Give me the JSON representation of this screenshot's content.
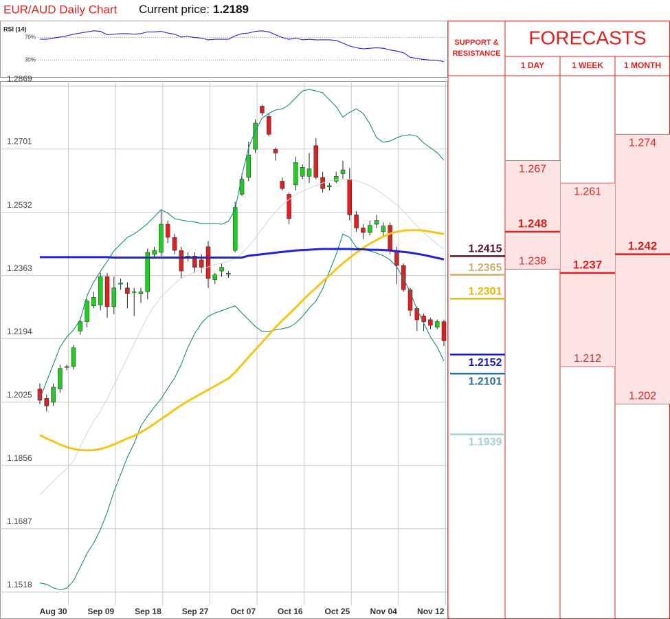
{
  "header": {
    "title": "EUR/AUD Daily Chart",
    "price_label": "Current price:",
    "price": 1.2189
  },
  "chart_data": [
    {
      "type": "candlestick",
      "categories": [
        null,
        null,
        "Aug 30",
        null,
        null,
        null,
        null,
        null,
        null,
        "Sep 09",
        null,
        null,
        null,
        null,
        null,
        null,
        "Sep 18",
        null,
        null,
        null,
        null,
        null,
        null,
        "Sep 27",
        null,
        null,
        null,
        null,
        null,
        null,
        "Oct 07",
        null,
        null,
        null,
        null,
        null,
        null,
        "Oct 16",
        null,
        null,
        null,
        null,
        null,
        null,
        "Oct 25",
        null,
        null,
        null,
        null,
        null,
        null,
        "Nov 04",
        null,
        null,
        null,
        null,
        null,
        null,
        "Nov 12",
        null,
        null
      ],
      "open": [
        1.206,
        1.2035,
        1.2025,
        1.206,
        1.2118,
        1.212,
        1.2215,
        1.224,
        1.2282,
        1.2285,
        1.236,
        1.228,
        1.234,
        1.233,
        1.2318,
        1.2315,
        1.232,
        1.242,
        1.2425,
        1.25,
        1.2465,
        1.243,
        1.241,
        1.2415,
        1.2405,
        1.244,
        1.2352,
        1.2375,
        1.2367,
        1.243,
        1.258,
        1.2625,
        1.27,
        1.2815,
        1.2788,
        1.27,
        1.2615,
        1.258,
        1.2605,
        1.2628,
        1.2628,
        1.271,
        1.2625,
        1.26,
        1.2615,
        1.2635,
        1.262,
        1.2525,
        1.249,
        1.2478,
        1.25,
        1.248,
        1.2497,
        1.2428,
        1.239,
        1.2325,
        1.2275,
        1.2255,
        1.2245,
        1.2225,
        1.224
      ],
      "high": [
        1.2075,
        1.2045,
        1.2075,
        1.2125,
        1.2125,
        1.2178,
        1.225,
        1.23,
        1.232,
        1.237,
        1.237,
        1.236,
        1.2355,
        1.2345,
        1.233,
        1.233,
        1.2435,
        1.244,
        1.254,
        1.251,
        1.2475,
        1.244,
        1.2425,
        1.2425,
        1.242,
        1.2455,
        1.237,
        1.2395,
        1.2375,
        1.256,
        1.2635,
        1.272,
        1.278,
        1.282,
        1.2795,
        1.2705,
        1.2625,
        1.2585,
        1.268,
        1.266,
        1.269,
        1.273,
        1.264,
        1.261,
        1.264,
        1.267,
        1.265,
        1.2535,
        1.25,
        1.251,
        1.2525,
        1.2505,
        1.2505,
        1.244,
        1.2395,
        1.233,
        1.228,
        1.2262,
        1.225,
        1.2245,
        1.2245
      ],
      "low": [
        1.202,
        1.2,
        1.2015,
        1.205,
        1.211,
        1.2112,
        1.2205,
        1.2225,
        1.2275,
        1.227,
        1.225,
        1.226,
        1.2325,
        1.2275,
        1.2255,
        1.229,
        1.23,
        1.241,
        1.2415,
        1.245,
        1.242,
        1.2355,
        1.24,
        1.237,
        1.237,
        1.233,
        1.234,
        1.236,
        1.2357,
        1.2425,
        1.2575,
        1.2615,
        1.269,
        1.279,
        1.2735,
        1.267,
        1.259,
        1.25,
        1.259,
        1.262,
        1.261,
        1.262,
        1.2585,
        1.259,
        1.261,
        1.262,
        1.251,
        1.248,
        1.246,
        1.247,
        1.249,
        1.2465,
        1.242,
        1.234,
        1.232,
        1.2255,
        1.2215,
        1.2215,
        1.222,
        1.222,
        1.2175
      ],
      "close": [
        1.203,
        1.2015,
        1.2065,
        1.2115,
        1.212,
        1.217,
        1.224,
        1.2295,
        1.2305,
        1.236,
        1.228,
        1.233,
        1.2343,
        1.2315,
        1.232,
        1.232,
        1.2425,
        1.243,
        1.25,
        1.2465,
        1.243,
        1.2375,
        1.2415,
        1.2385,
        1.2385,
        1.2355,
        1.2365,
        1.2385,
        1.2369,
        1.2545,
        1.262,
        1.2685,
        1.277,
        1.2797,
        1.274,
        1.269,
        1.2595,
        1.2515,
        1.2665,
        1.2652,
        1.2648,
        1.2625,
        1.2595,
        1.2603,
        1.2628,
        1.2645,
        1.2525,
        1.249,
        1.2478,
        1.2497,
        1.251,
        1.2495,
        1.243,
        1.239,
        1.2325,
        1.227,
        1.2245,
        1.224,
        1.223,
        1.224,
        1.2189
      ],
      "up_color": "#22cc22",
      "down_color": "#e02020",
      "overlays": [
        {
          "color": "#d8d8d8",
          "bold": false,
          "values": [
            1.1777,
            1.1796,
            1.1814,
            1.1832,
            1.1847,
            1.1869,
            1.1906,
            1.1942,
            1.1975,
            1.2001,
            1.2034,
            1.2071,
            1.2107,
            1.2144,
            1.2181,
            1.2218,
            1.2254,
            1.2282,
            1.2306,
            1.2324,
            1.2341,
            1.2355,
            1.2364,
            1.2372,
            1.2379,
            1.2386,
            1.2392,
            1.2396,
            1.2401,
            1.2408,
            1.2423,
            1.2441,
            1.2463,
            1.2487,
            1.2511,
            1.2533,
            1.2552,
            1.2566,
            1.2579,
            1.2588,
            1.2596,
            1.2603,
            1.261,
            1.2616,
            1.2619,
            1.2621,
            1.2619,
            1.2616,
            1.261,
            1.2603,
            1.2592,
            1.2579,
            1.2566,
            1.2552,
            1.2535,
            1.2515,
            1.2496,
            1.2478,
            1.2462,
            1.2447,
            1.2434
          ]
        },
        {
          "color": "#1a8a80",
          "bold": false,
          "values": [
            1.2034,
            1.208,
            1.2126,
            1.2172,
            1.2199,
            1.2218,
            1.2245,
            1.2309,
            1.2346,
            1.2374,
            1.2401,
            1.2429,
            1.2447,
            1.2465,
            1.2474,
            1.2487,
            1.2502,
            1.252,
            1.2539,
            1.253,
            1.2515,
            1.2511,
            1.2508,
            1.2506,
            1.2502,
            1.2502,
            1.2502,
            1.25,
            1.2508,
            1.2539,
            1.263,
            1.2704,
            1.275,
            1.2783,
            1.2796,
            1.2805,
            1.2808,
            1.2819,
            1.2838,
            1.2856,
            1.286,
            1.2856,
            1.2851,
            1.2832,
            1.2814,
            1.2786,
            1.2799,
            1.2808,
            1.2796,
            1.2768,
            1.2731,
            1.2719,
            1.2722,
            1.2731,
            1.2737,
            1.2739,
            1.2735,
            1.2717,
            1.2704,
            1.2691,
            1.2671
          ]
        },
        {
          "color": "#1a8a80",
          "bold": false,
          "values": [
            1.1542,
            1.1539,
            1.1529,
            1.1524,
            1.1528,
            1.1548,
            1.1584,
            1.1621,
            1.1649,
            1.1685,
            1.1731,
            1.1786,
            1.1832,
            1.1878,
            1.1915,
            1.1961,
            1.1988,
            1.2012,
            1.2034,
            1.2062,
            1.2089,
            1.2126,
            1.2172,
            1.2208,
            1.2236,
            1.2254,
            1.2263,
            1.2269,
            1.2276,
            1.2282,
            1.2263,
            1.2245,
            1.2227,
            1.2214,
            1.2214,
            1.2218,
            1.2221,
            1.2225,
            1.2236,
            1.2254,
            1.2276,
            1.2295,
            1.2328,
            1.2374,
            1.2419,
            1.2474,
            1.2465,
            1.2438,
            1.2432,
            1.2429,
            1.2423,
            1.2416,
            1.2405,
            1.2386,
            1.2355,
            1.2318,
            1.2273,
            1.2236,
            1.2199,
            1.2172,
            1.2135
          ]
        },
        {
          "color": "#f5c518",
          "bold": true,
          "values": [
            1.1937,
            1.1928,
            1.192,
            1.1912,
            1.1905,
            1.19,
            1.1897,
            1.1896,
            1.1897,
            1.19,
            1.1905,
            1.1912,
            1.192,
            1.1928,
            1.1935,
            1.1945,
            1.1955,
            1.1967,
            1.198,
            1.1992,
            1.2005,
            1.2017,
            1.2028,
            1.2038,
            1.2048,
            1.2058,
            1.2068,
            1.2078,
            1.2088,
            1.2105,
            1.2125,
            1.2145,
            1.2165,
            1.2185,
            1.2205,
            1.2225,
            1.2243,
            1.226,
            1.2278,
            1.2296,
            1.2314,
            1.233,
            1.2347,
            1.2363,
            1.238,
            1.2396,
            1.241,
            1.2424,
            1.2437,
            1.2448,
            1.2458,
            1.2467,
            1.2475,
            1.248,
            1.2483,
            1.2484,
            1.2484,
            1.2483,
            1.248,
            1.2477,
            1.2474
          ]
        },
        {
          "color": "#2020e0",
          "bold": true,
          "values": [
            1.2412,
            1.2412,
            1.2412,
            1.2412,
            1.2412,
            1.2412,
            1.2412,
            1.2412,
            1.2412,
            1.2412,
            1.2412,
            1.2411,
            1.2411,
            1.2411,
            1.2411,
            1.2411,
            1.2411,
            1.2411,
            1.2411,
            1.2411,
            1.2411,
            1.2411,
            1.2411,
            1.2411,
            1.2411,
            1.2411,
            1.2411,
            1.2411,
            1.2411,
            1.2411,
            1.2411,
            1.2416,
            1.2418,
            1.242,
            1.2422,
            1.2424,
            1.2426,
            1.2428,
            1.243,
            1.2431,
            1.2432,
            1.2433,
            1.2434,
            1.2434,
            1.2434,
            1.2434,
            1.2434,
            1.2433,
            1.2433,
            1.2432,
            1.2432,
            1.2431,
            1.243,
            1.2428,
            1.2426,
            1.2424,
            1.2421,
            1.2418,
            1.2414,
            1.241,
            1.2406
          ]
        }
      ],
      "ylim": [
        1.1446,
        1.2882
      ],
      "yticks": [
        1.2869,
        1.2701,
        1.2532,
        1.2363,
        1.2194,
        1.2025,
        1.1856,
        1.1687,
        1.1518
      ],
      "grid": true
    },
    {
      "type": "line",
      "title": "RSI (14)",
      "color": "#2020d0",
      "values": [
        67,
        67,
        69,
        71,
        73,
        76,
        78,
        80,
        82,
        81,
        75,
        76,
        77,
        77,
        76,
        77,
        80,
        80,
        81,
        78,
        76,
        71,
        72,
        70,
        69,
        66,
        67,
        67,
        67,
        73,
        77,
        78,
        81,
        82,
        80,
        75,
        70,
        67,
        69,
        66,
        67,
        66,
        66,
        66,
        65,
        60,
        55,
        52,
        50,
        51,
        52,
        51,
        48,
        46,
        43,
        35,
        33,
        31,
        30,
        30,
        27
      ],
      "ylim": [
        0,
        100
      ],
      "yticks": [
        {
          "value": 70,
          "label": "70%"
        },
        {
          "value": 30,
          "label": "30%"
        }
      ]
    }
  ],
  "levels": {
    "title": "SUPPORT & RESISTANCE",
    "values": [
      1.2415,
      1.2365,
      1.2301,
      1.2152,
      1.2101,
      1.1939
    ],
    "colors": [
      "#5a1030",
      "#c8b070",
      "#e8b800",
      "#1a1ad0",
      "#2a7090",
      "#a8d0d0"
    ]
  },
  "forecasts": {
    "title": "FORECASTS",
    "color": "#e02020",
    "columns": [
      {
        "label": "1 DAY",
        "values": [
          1.267,
          1.248,
          1.238
        ]
      },
      {
        "label": "1 WEEK",
        "values": [
          1.261,
          1.237,
          1.212
        ]
      },
      {
        "label": "1 MONTH",
        "values": [
          1.274,
          1.242,
          1.202
        ]
      }
    ]
  }
}
